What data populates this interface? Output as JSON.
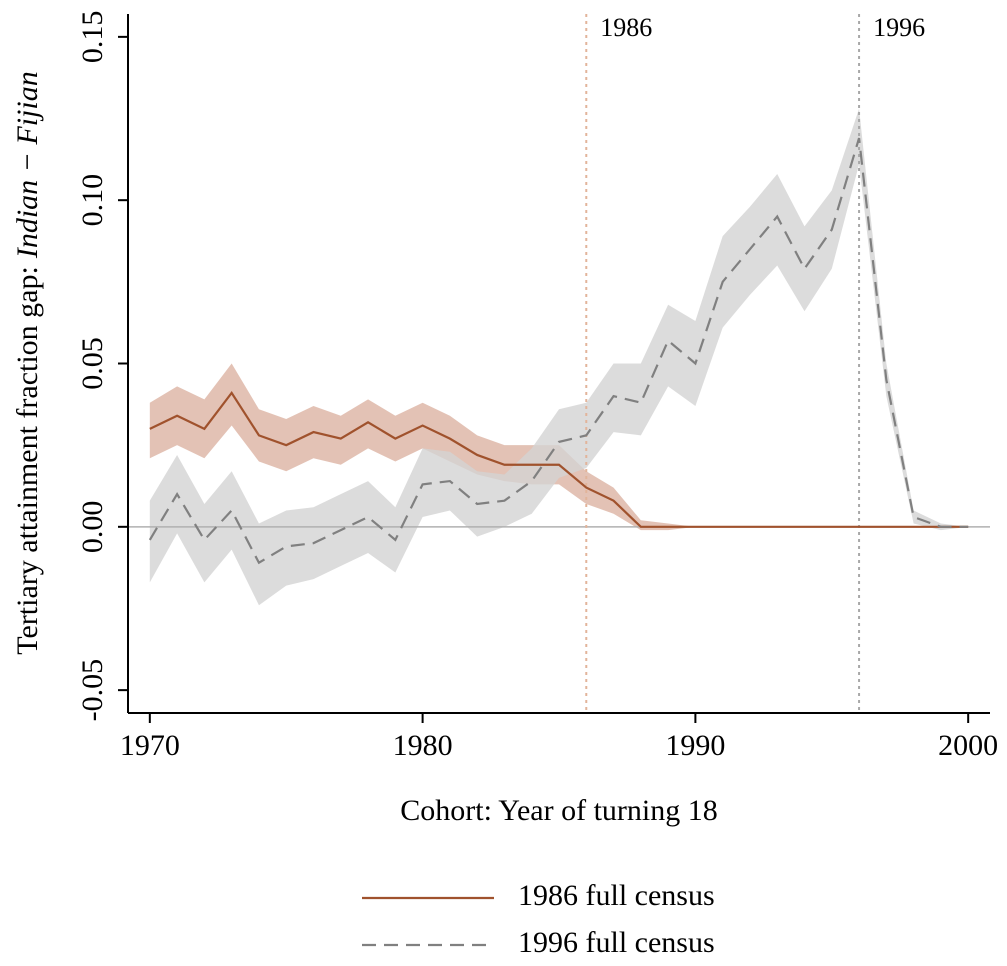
{
  "chart_data": {
    "type": "line",
    "ylabel": [
      "Tertiary attainment fraction gap:",
      "Indian − Fijian"
    ],
    "xlabel": "Cohort: Year of turning 18",
    "x": [
      1970,
      1971,
      1972,
      1973,
      1974,
      1975,
      1976,
      1977,
      1978,
      1979,
      1980,
      1981,
      1982,
      1983,
      1984,
      1985,
      1986,
      1987,
      1988,
      1989,
      1990,
      1991,
      1992,
      1993,
      1994,
      1995,
      1996,
      1997,
      1998,
      1999,
      2000
    ],
    "series": [
      {
        "name": "1986 full census",
        "color": "#a0522d",
        "band_color": "#dcb3a2",
        "dash": false,
        "values": [
          0.03,
          0.034,
          0.03,
          0.041,
          0.028,
          0.025,
          0.029,
          0.027,
          0.032,
          0.027,
          0.031,
          0.027,
          0.022,
          0.019,
          0.019,
          0.019,
          0.012,
          0.008,
          0.0,
          0.0,
          0,
          0,
          0,
          0,
          0,
          0,
          0,
          0,
          0,
          0,
          0
        ],
        "lower": [
          0.021,
          0.025,
          0.021,
          0.031,
          0.02,
          0.017,
          0.021,
          0.019,
          0.024,
          0.02,
          0.024,
          0.02,
          0.016,
          0.014,
          0.013,
          0.013,
          0.007,
          0.004,
          -0.001,
          -0.001,
          0,
          0,
          0,
          0,
          0,
          0,
          0,
          0,
          0,
          0,
          0
        ],
        "upper": [
          0.038,
          0.043,
          0.039,
          0.05,
          0.036,
          0.033,
          0.037,
          0.034,
          0.039,
          0.034,
          0.038,
          0.034,
          0.028,
          0.025,
          0.025,
          0.025,
          0.017,
          0.012,
          0.002,
          0.001,
          0,
          0,
          0,
          0,
          0,
          0,
          0,
          0,
          0,
          0,
          0
        ]
      },
      {
        "name": "1996 full census",
        "color": "#808080",
        "band_color": "#d3d3d3",
        "dash": true,
        "values": [
          -0.004,
          0.01,
          -0.004,
          0.005,
          -0.011,
          -0.006,
          -0.005,
          -0.001,
          0.003,
          -0.004,
          0.013,
          0.014,
          0.007,
          0.008,
          0.014,
          0.026,
          0.028,
          0.04,
          0.038,
          0.057,
          0.05,
          0.075,
          0.085,
          0.095,
          0.079,
          0.091,
          0.119,
          0.045,
          0.003,
          0.0,
          0.0
        ],
        "lower": [
          -0.017,
          -0.002,
          -0.017,
          -0.007,
          -0.024,
          -0.018,
          -0.016,
          -0.012,
          -0.008,
          -0.014,
          0.003,
          0.005,
          -0.003,
          0.0,
          0.004,
          0.015,
          0.018,
          0.029,
          0.028,
          0.043,
          0.037,
          0.061,
          0.071,
          0.08,
          0.066,
          0.079,
          0.111,
          0.04,
          0.001,
          -0.001,
          0
        ],
        "upper": [
          0.008,
          0.022,
          0.007,
          0.017,
          0.001,
          0.005,
          0.006,
          0.01,
          0.014,
          0.006,
          0.024,
          0.023,
          0.017,
          0.016,
          0.024,
          0.036,
          0.038,
          0.05,
          0.05,
          0.068,
          0.063,
          0.089,
          0.098,
          0.108,
          0.092,
          0.103,
          0.128,
          0.05,
          0.005,
          0.001,
          0
        ]
      }
    ],
    "annotations": [
      {
        "x": 1986,
        "label": "1986",
        "color": "#e2b49a"
      },
      {
        "x": 1996,
        "label": "1996",
        "color": "#a8a8a8"
      }
    ],
    "zero_line_color": "#b0b0b0",
    "xlim": [
      1969.2,
      2000.8
    ],
    "xticks": [
      1970,
      1980,
      1990,
      2000
    ],
    "ylim": [
      -0.057,
      0.157
    ],
    "yticks": [
      -0.05,
      {
        "value": 0,
        "label": "0.00"
      },
      0.05,
      {
        "value": 0.1,
        "label": "0.10"
      },
      0.15
    ]
  }
}
